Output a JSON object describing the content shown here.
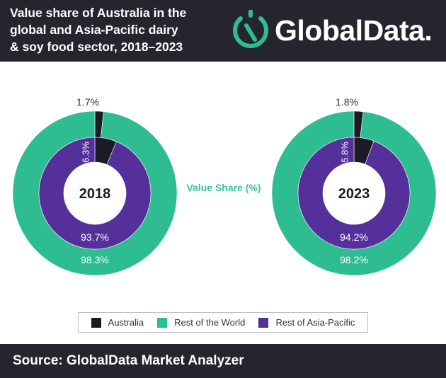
{
  "header": {
    "title_lines": [
      "Value share of Australia in the",
      "global and Asia-Pacific dairy",
      "& soy food sector, 2018–2023"
    ],
    "logo_text": "GlobalData.",
    "logo_icon": "globaldata-logo-icon"
  },
  "colors": {
    "australia": "#1c1a27",
    "rest_of_world": "#2ebd91",
    "rest_of_asia_pacific": "#55309a",
    "background_dark": "#252530",
    "center_label": "#3cc49a"
  },
  "legend": {
    "items": [
      {
        "label": "Australia",
        "color": "#1c1a27"
      },
      {
        "label": "Rest of the World",
        "color": "#2ebd91"
      },
      {
        "label": "Rest of Asia-Pacific",
        "color": "#55309a"
      }
    ]
  },
  "chart_data": {
    "type": "pie",
    "center_label": "Value Share (%)",
    "charts": [
      {
        "year": "2018",
        "outer_ring": {
          "categories": [
            "Australia",
            "Rest of the World"
          ],
          "values": [
            1.7,
            98.3
          ],
          "labels": [
            "1.7%",
            "98.3%"
          ]
        },
        "inner_ring": {
          "categories": [
            "Australia",
            "Rest of Asia-Pacific"
          ],
          "values": [
            6.3,
            93.7
          ],
          "labels": [
            "6.3%",
            "93.7%"
          ]
        }
      },
      {
        "year": "2023",
        "outer_ring": {
          "categories": [
            "Australia",
            "Rest of the World"
          ],
          "values": [
            1.8,
            98.2
          ],
          "labels": [
            "1.8%",
            "98.2%"
          ]
        },
        "inner_ring": {
          "categories": [
            "Australia",
            "Rest of Asia-Pacific"
          ],
          "values": [
            5.8,
            94.2
          ],
          "labels": [
            "5.8%",
            "94.2%"
          ]
        }
      }
    ]
  },
  "footer": {
    "source": "Source: GlobalData Market Analyzer"
  }
}
